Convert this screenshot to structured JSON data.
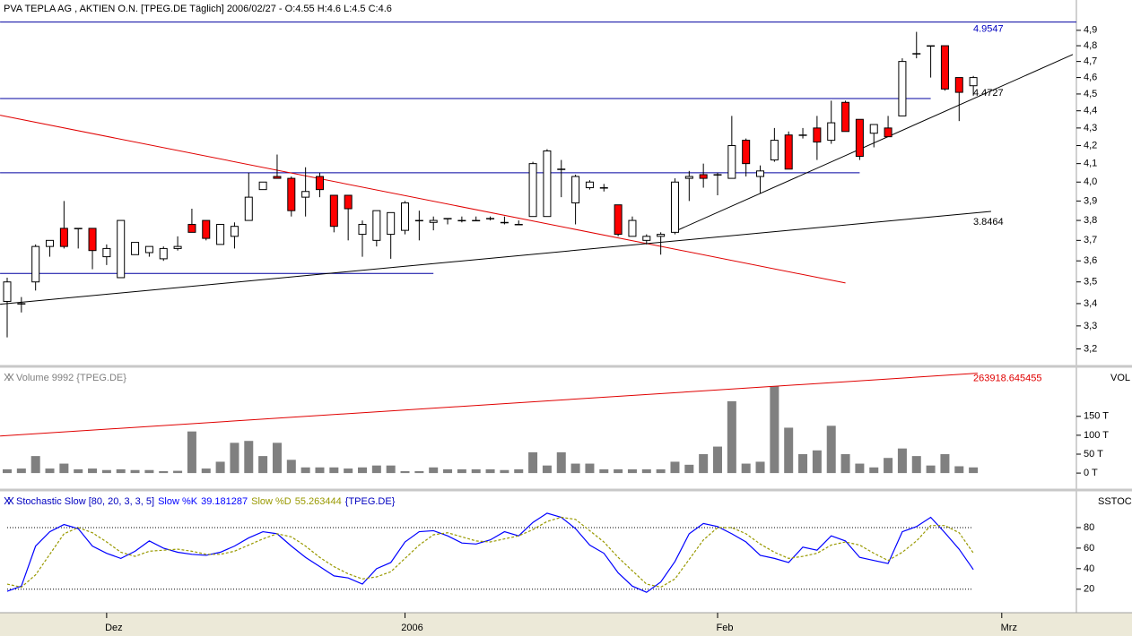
{
  "chart_data": [
    {
      "type": "candlestick",
      "title": "PVA TEPLA AG , AKTIEN O.N. [TPEG.DE  Täglich] 2006/02/27 - O:4.55 H:4.6 L:4.5 C:4.6",
      "open": [
        3.41,
        3.4,
        3.5,
        3.67,
        3.76,
        3.76,
        3.76,
        3.62,
        3.52,
        3.63,
        3.64,
        3.61,
        3.66,
        3.78,
        3.8,
        3.68,
        3.72,
        3.8,
        3.96,
        4.03,
        4.02,
        3.92,
        4.03,
        3.93,
        3.93,
        3.73,
        3.7,
        3.73,
        3.75,
        3.8,
        3.79,
        3.81,
        3.8,
        3.8,
        3.81,
        3.79,
        3.78,
        3.82,
        3.82,
        4.07,
        3.89,
        3.97,
        3.97,
        3.88,
        3.72,
        3.7,
        3.72,
        3.74,
        4.02,
        4.04,
        4.04,
        4.02,
        4.23,
        4.03,
        4.12,
        4.26,
        4.26,
        4.3,
        4.23,
        4.45,
        4.35,
        4.27,
        4.3,
        4.37,
        4.75,
        4.8,
        4.8,
        4.6,
        4.55
      ],
      "high": [
        3.52,
        3.43,
        3.68,
        3.7,
        3.9,
        3.76,
        3.76,
        3.68,
        3.8,
        3.69,
        3.67,
        3.67,
        3.72,
        3.86,
        3.8,
        3.78,
        3.79,
        4.05,
        4.0,
        4.15,
        4.03,
        4.08,
        4.05,
        3.93,
        3.93,
        3.8,
        3.85,
        3.84,
        3.9,
        3.85,
        3.82,
        3.81,
        3.82,
        3.82,
        3.82,
        3.82,
        3.8,
        4.11,
        4.18,
        4.12,
        4.04,
        4.01,
        3.99,
        3.88,
        3.82,
        3.73,
        3.74,
        4.02,
        4.06,
        4.1,
        4.05,
        4.37,
        4.24,
        4.09,
        4.3,
        4.28,
        4.3,
        4.37,
        4.46,
        4.46,
        4.35,
        4.32,
        4.37,
        4.72,
        4.89,
        4.8,
        4.8,
        4.6,
        4.61
      ],
      "low": [
        3.25,
        3.36,
        3.46,
        3.62,
        3.66,
        3.66,
        3.56,
        3.58,
        3.52,
        3.63,
        3.62,
        3.6,
        3.65,
        3.74,
        3.7,
        3.68,
        3.66,
        3.8,
        3.96,
        4.03,
        3.82,
        3.82,
        3.92,
        3.74,
        3.7,
        3.62,
        3.67,
        3.61,
        3.73,
        3.7,
        3.75,
        3.78,
        3.79,
        3.8,
        3.8,
        3.78,
        3.78,
        3.82,
        3.82,
        3.92,
        3.78,
        3.96,
        3.95,
        3.72,
        3.72,
        3.68,
        3.63,
        3.73,
        3.9,
        3.97,
        3.93,
        4.02,
        4.03,
        3.94,
        4.11,
        4.07,
        4.24,
        4.12,
        4.21,
        4.28,
        4.12,
        4.19,
        4.26,
        4.37,
        4.72,
        4.6,
        4.52,
        4.34,
        4.49
      ],
      "close": [
        3.5,
        3.4,
        3.67,
        3.7,
        3.67,
        3.76,
        3.65,
        3.66,
        3.8,
        3.69,
        3.67,
        3.66,
        3.67,
        3.74,
        3.71,
        3.78,
        3.77,
        3.92,
        4.0,
        4.02,
        3.85,
        3.95,
        3.96,
        3.77,
        3.86,
        3.78,
        3.85,
        3.84,
        3.89,
        3.8,
        3.8,
        3.81,
        3.8,
        3.8,
        3.81,
        3.79,
        3.78,
        4.1,
        4.17,
        4.07,
        4.03,
        4.0,
        3.97,
        3.73,
        3.8,
        3.72,
        3.73,
        4.0,
        4.03,
        4.02,
        4.04,
        4.2,
        4.1,
        4.06,
        4.23,
        4.07,
        4.26,
        4.22,
        4.33,
        4.28,
        4.14,
        4.32,
        4.25,
        4.7,
        4.75,
        4.8,
        4.53,
        4.51,
        4.6
      ],
      "up_color": "#ffffff",
      "down_color": "#ff0000",
      "log_scale": true,
      "ylim": [
        3.13,
        4.97
      ],
      "yticks": [
        {
          "value": 3.2,
          "label": "3,2"
        },
        {
          "value": 3.3,
          "label": "3,3"
        },
        {
          "value": 3.4,
          "label": "3,4"
        },
        {
          "value": 3.5,
          "label": "3,5"
        },
        {
          "value": 3.6,
          "label": "3,6"
        },
        {
          "value": 3.7,
          "label": "3,7"
        },
        {
          "value": 3.8,
          "label": "3,8"
        },
        {
          "value": 3.9,
          "label": "3,9"
        },
        {
          "value": 4.0,
          "label": "4,0"
        },
        {
          "value": 4.1,
          "label": "4,1"
        },
        {
          "value": 4.2,
          "label": "4,2"
        },
        {
          "value": 4.3,
          "label": "4,3"
        },
        {
          "value": 4.4,
          "label": "4,4"
        },
        {
          "value": 4.5,
          "label": "4,5"
        },
        {
          "value": 4.6,
          "label": "4,6"
        },
        {
          "value": 4.7,
          "label": "4,7"
        },
        {
          "value": 4.8,
          "label": "4,8"
        },
        {
          "value": 4.9,
          "label": "4,9"
        }
      ],
      "hlines": [
        {
          "value": 4.9547,
          "x": [
            -0.5,
            75.25
          ],
          "color": "#0000a0",
          "labeled": true
        },
        {
          "value": 4.4727,
          "x": [
            -0.5,
            65
          ],
          "color": "#0000a0",
          "labeled": true
        },
        {
          "value": 4.05,
          "x": [
            -0.5,
            60
          ],
          "color": "#0000a0"
        },
        {
          "value": 3.54,
          "x": [
            -0.5,
            30
          ],
          "color": "#0000a0"
        }
      ],
      "trendlines": [
        {
          "x": [
            -0.5,
            59
          ],
          "y": [
            4.374,
            3.495
          ],
          "color": "#e00000"
        },
        {
          "x": [
            -0.5,
            69.25
          ],
          "y": [
            3.397,
            3.8464
          ],
          "color": "#000000",
          "labeled": true
        },
        {
          "x": [
            47,
            75
          ],
          "y": [
            3.745,
            4.744
          ],
          "color": "#000000"
        }
      ]
    },
    {
      "type": "bar",
      "title": "Volume 9992 {TPEG.DE}",
      "axis_label": "VOL",
      "values": [
        10,
        12,
        45,
        12,
        25,
        10,
        12,
        8,
        10,
        8,
        8,
        5,
        6,
        110,
        12,
        30,
        80,
        85,
        45,
        80,
        35,
        15,
        15,
        15,
        12,
        15,
        20,
        20,
        5,
        5,
        15,
        10,
        10,
        10,
        10,
        8,
        10,
        55,
        20,
        55,
        25,
        25,
        10,
        10,
        10,
        10,
        10,
        30,
        22,
        50,
        70,
        190,
        25,
        30,
        230,
        120,
        50,
        60,
        125,
        50,
        25,
        15,
        40,
        65,
        45,
        20,
        50,
        18,
        15
      ],
      "color": "#808080",
      "ylim": [
        -40,
        275
      ],
      "yticks": [
        {
          "value": 0,
          "label": "0 T"
        },
        {
          "value": 50,
          "label": "50 T"
        },
        {
          "value": 100,
          "label": "100 T"
        },
        {
          "value": 150,
          "label": "150 T"
        }
      ],
      "trendline": {
        "x": [
          -0.5,
          68.3
        ],
        "y": [
          98,
          263.918645455
        ],
        "color": "#e00000",
        "end_label": "263918.645455"
      }
    },
    {
      "type": "line",
      "title": "Stochastic Slow [80, 20, 3, 3, 5]",
      "source": "{TPEG.DE}",
      "axis_label": "SSTOC",
      "series": [
        {
          "name": "Slow %K",
          "color": "#0000ff",
          "values": [
            18,
            23,
            62,
            76,
            83,
            79,
            62,
            55,
            50,
            57,
            67,
            60,
            56,
            54,
            53,
            56,
            62,
            70,
            76,
            74,
            62,
            51,
            42,
            33,
            31,
            25,
            40,
            46,
            66,
            76,
            77,
            72,
            65,
            64,
            68,
            76,
            72,
            85,
            94,
            90,
            79,
            63,
            55,
            36,
            23,
            17,
            27,
            47,
            74,
            84,
            81,
            74,
            66,
            53,
            50,
            46,
            61,
            58,
            72,
            67,
            51,
            48,
            45,
            76,
            81,
            90,
            75,
            59,
            39.181287
          ]
        },
        {
          "name": "Slow %D",
          "color": "#999900",
          "dashed": true,
          "values": [
            25,
            22,
            34,
            54,
            74,
            80,
            75,
            66,
            56,
            52,
            57,
            58,
            59,
            57,
            54,
            54,
            57,
            63,
            69,
            74,
            71,
            62,
            51,
            42,
            35,
            30,
            32,
            37,
            50,
            63,
            73,
            75,
            71,
            67,
            66,
            69,
            72,
            78,
            86,
            90,
            88,
            77,
            66,
            51,
            38,
            25,
            22,
            30,
            49,
            68,
            80,
            80,
            74,
            64,
            56,
            50,
            52,
            55,
            63,
            66,
            63,
            55,
            48,
            56,
            67,
            82,
            82,
            75,
            55.263444
          ]
        }
      ],
      "ylim": [
        -2,
        114
      ],
      "yticks": [
        20,
        40,
        60,
        80
      ],
      "reference_levels": [
        80,
        20
      ],
      "xticks": [
        {
          "value": 7,
          "label": "Dez"
        },
        {
          "value": 28,
          "label": "2006"
        },
        {
          "value": 50,
          "label": "Feb"
        },
        {
          "value": 70,
          "label": "Mrz"
        }
      ]
    }
  ]
}
